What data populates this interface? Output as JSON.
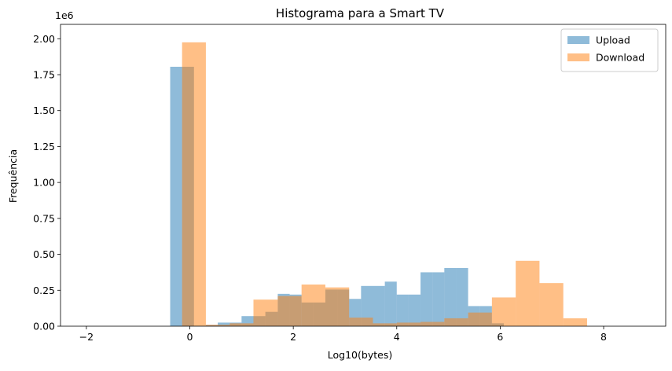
{
  "chart_data": {
    "type": "histogram",
    "title": "Histograma para a Smart TV",
    "xlabel": "Log10(bytes)",
    "ylabel": "Frequência",
    "y_scale_label": "1e6",
    "xlim": [
      -2.5,
      9.2
    ],
    "ylim": [
      0,
      2100000
    ],
    "x_ticks": [
      -2,
      0,
      2,
      4,
      6,
      8
    ],
    "x_tick_labels": [
      "−2",
      "0",
      "2",
      "4",
      "6",
      "8"
    ],
    "y_ticks": [
      0,
      250000,
      500000,
      750000,
      1000000,
      1250000,
      1500000,
      1750000,
      2000000
    ],
    "y_tick_labels": [
      "0.00",
      "0.25",
      "0.50",
      "0.75",
      "1.00",
      "1.25",
      "1.50",
      "1.75",
      "2.00"
    ],
    "legend_position": "top-right",
    "series": [
      {
        "name": "Upload",
        "color": "#1f77b4",
        "opacity": 0.5,
        "bins": [
          [
            -0.38,
            -0.15,
            1805000
          ],
          [
            -0.15,
            0.08,
            1805000
          ],
          [
            0.08,
            0.31,
            3000
          ],
          [
            0.31,
            0.54,
            8000
          ],
          [
            0.54,
            0.77,
            25000
          ],
          [
            0.77,
            1.0,
            25000
          ],
          [
            1.0,
            1.23,
            70000
          ],
          [
            1.23,
            1.46,
            70000
          ],
          [
            1.46,
            1.7,
            100000
          ],
          [
            1.7,
            1.93,
            225000
          ],
          [
            1.93,
            2.16,
            220000
          ],
          [
            2.16,
            2.39,
            165000
          ],
          [
            2.39,
            2.62,
            165000
          ],
          [
            2.62,
            2.85,
            255000
          ],
          [
            2.85,
            3.08,
            255000
          ],
          [
            3.08,
            3.31,
            190000
          ],
          [
            3.31,
            3.54,
            280000
          ],
          [
            3.54,
            3.77,
            280000
          ],
          [
            3.77,
            4.0,
            310000
          ],
          [
            4.0,
            4.23,
            220000
          ],
          [
            4.23,
            4.46,
            220000
          ],
          [
            4.46,
            4.69,
            375000
          ],
          [
            4.69,
            4.92,
            375000
          ],
          [
            4.92,
            5.15,
            405000
          ],
          [
            5.15,
            5.38,
            405000
          ],
          [
            5.38,
            5.61,
            140000
          ],
          [
            5.61,
            5.84,
            140000
          ],
          [
            5.84,
            6.07,
            20000
          ]
        ]
      },
      {
        "name": "Download",
        "color": "#ff7f0e",
        "opacity": 0.5,
        "bins": [
          [
            -0.15,
            0.31,
            1975000
          ],
          [
            0.31,
            0.77,
            10000
          ],
          [
            0.77,
            1.23,
            20000
          ],
          [
            1.23,
            1.7,
            185000
          ],
          [
            1.7,
            2.16,
            210000
          ],
          [
            2.16,
            2.62,
            290000
          ],
          [
            2.62,
            3.08,
            270000
          ],
          [
            3.08,
            3.54,
            60000
          ],
          [
            3.54,
            4.0,
            20000
          ],
          [
            4.0,
            4.46,
            25000
          ],
          [
            4.46,
            4.92,
            30000
          ],
          [
            4.92,
            5.38,
            55000
          ],
          [
            5.38,
            5.84,
            95000
          ],
          [
            5.84,
            6.3,
            200000
          ],
          [
            6.3,
            6.76,
            455000
          ],
          [
            6.76,
            7.22,
            300000
          ],
          [
            7.22,
            7.68,
            55000
          ]
        ]
      }
    ]
  }
}
